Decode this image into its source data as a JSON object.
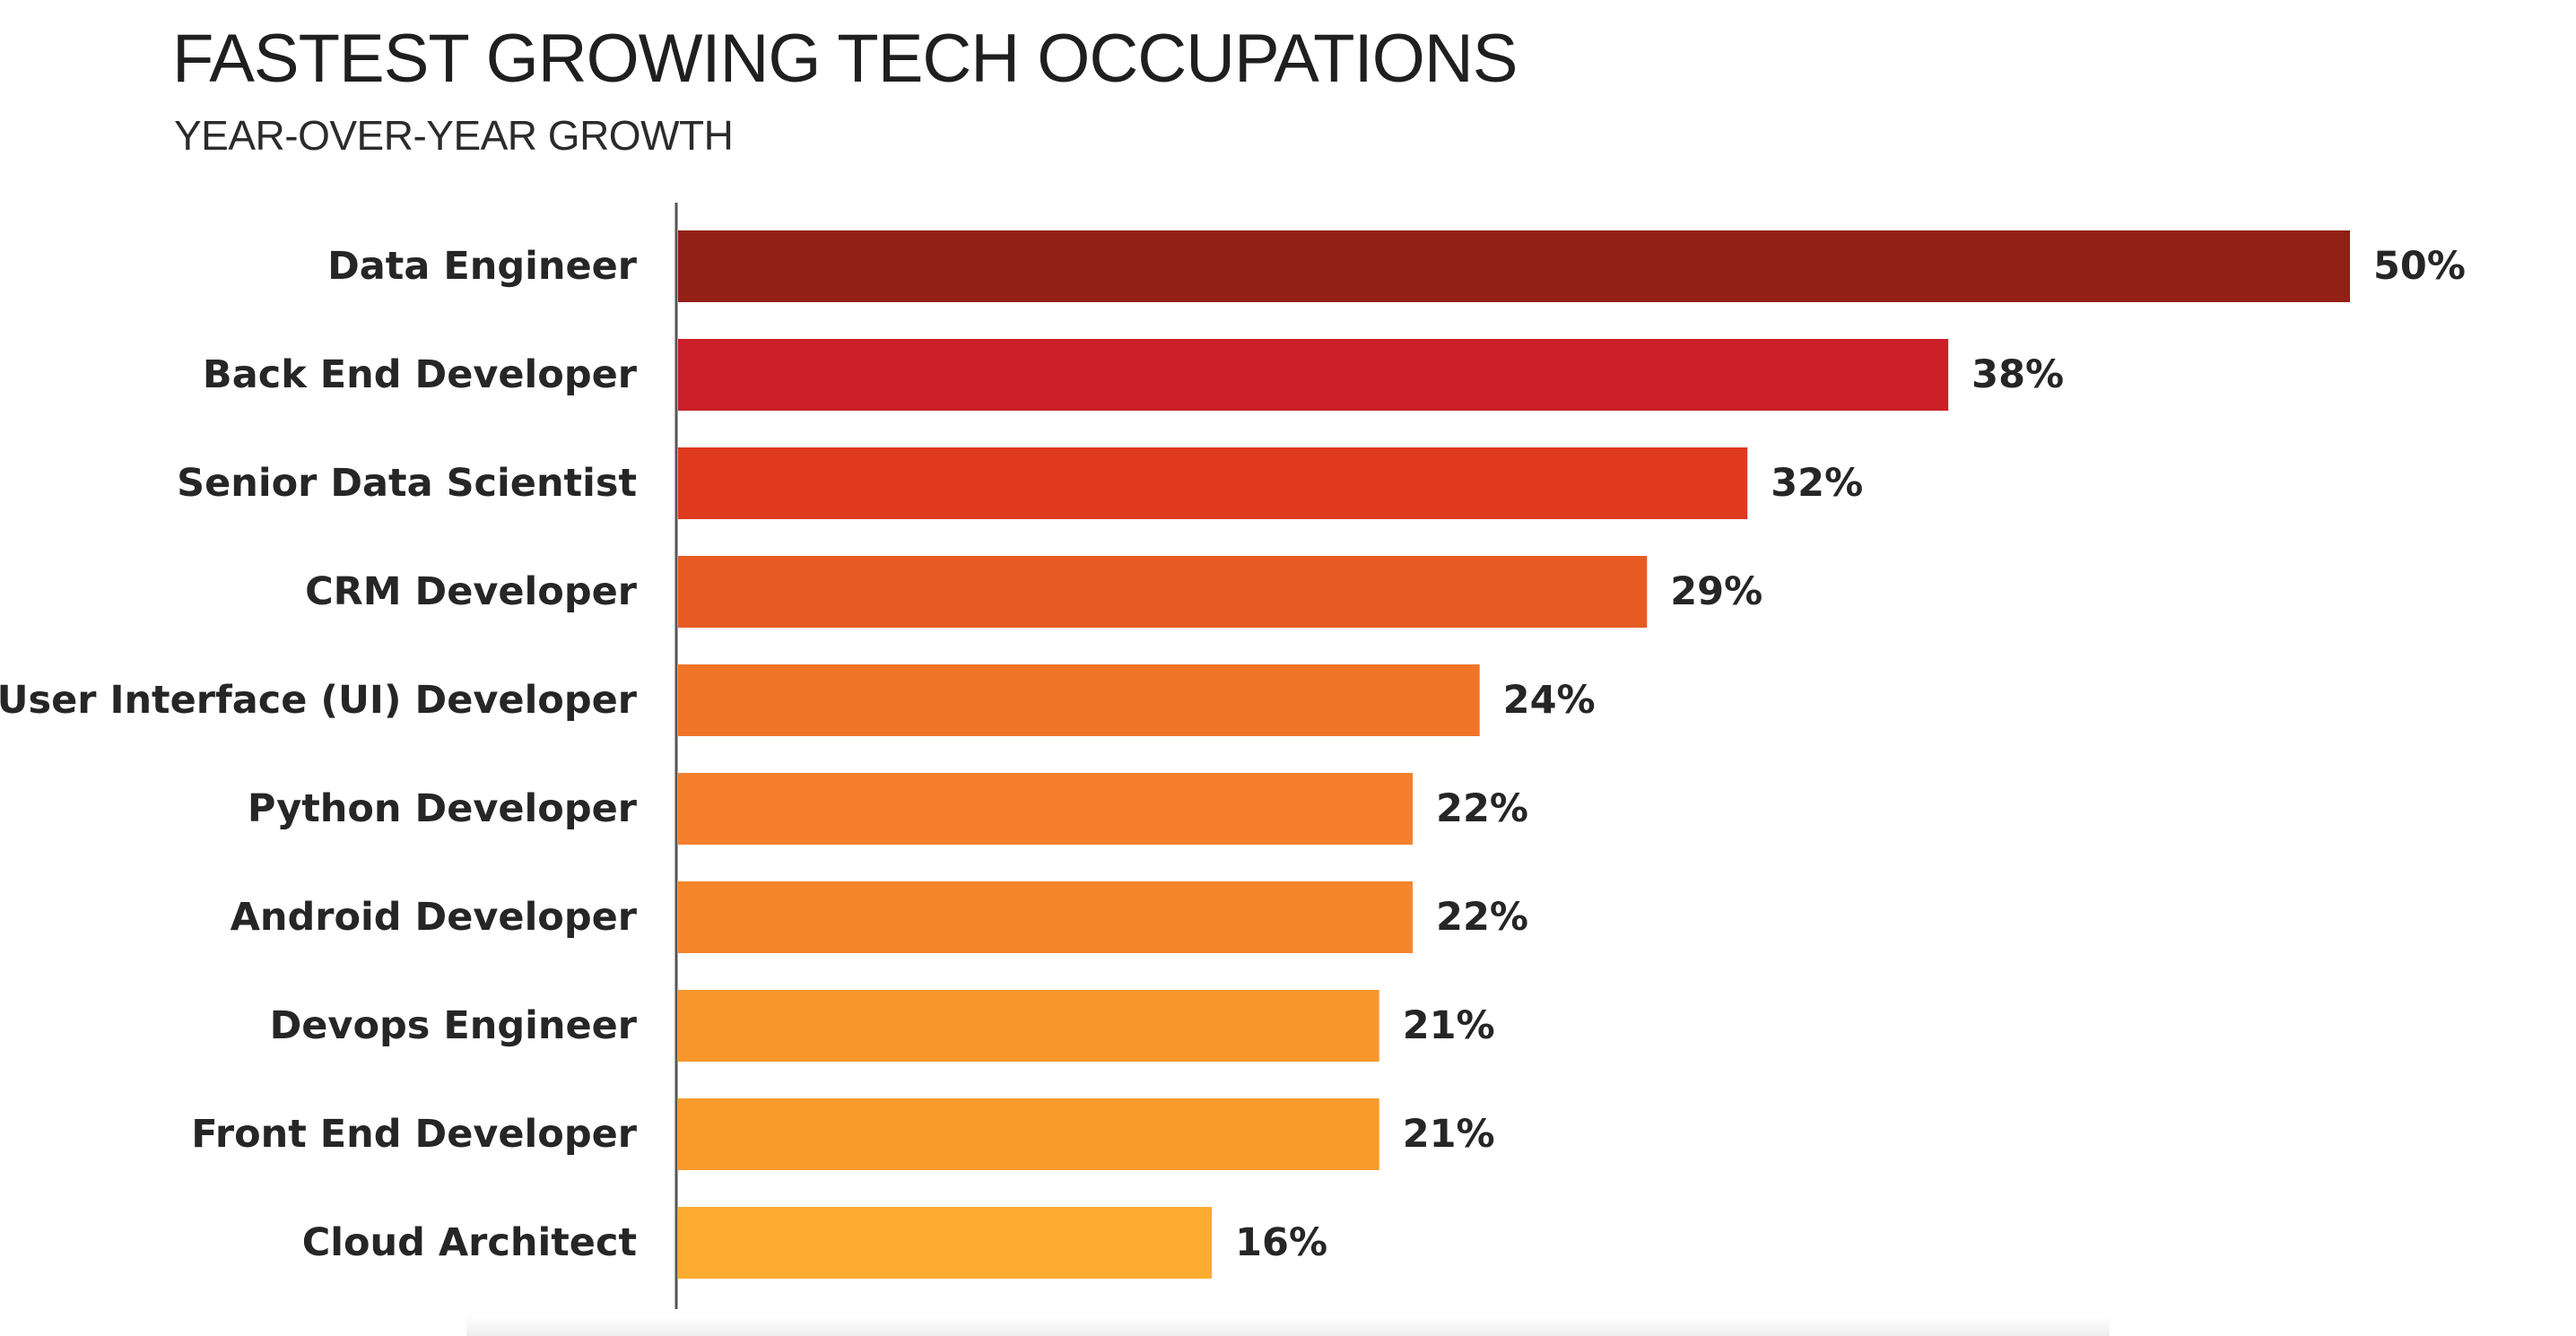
{
  "chart_data": {
    "type": "bar",
    "orientation": "horizontal",
    "title": "FASTEST GROWING TECH OCCUPATIONS",
    "subtitle": "YEAR-OVER-YEAR GROWTH",
    "xlabel": "",
    "ylabel": "",
    "xlim": [
      0,
      50
    ],
    "grid": false,
    "legend": "none",
    "value_suffix": "%",
    "categories": [
      "Data Engineer",
      "Back End Developer",
      "Senior Data Scientist",
      "CRM Developer",
      "User Interface (UI) Developer",
      "Python Developer",
      "Android Developer",
      "Devops Engineer",
      "Front End Developer",
      "Cloud Architect"
    ],
    "values": [
      50,
      38,
      32,
      29,
      24,
      22,
      22,
      21,
      21,
      16
    ],
    "value_labels": [
      "50%",
      "38%",
      "32%",
      "29%",
      "24%",
      "22%",
      "22%",
      "21%",
      "21%",
      "16%"
    ],
    "colors": [
      "#922015",
      "#cb2027",
      "#df3a1e",
      "#e85a24",
      "#f17429",
      "#f57f2a",
      "#f5852b",
      "#f8962c",
      "#f99a2d",
      "#fbab30"
    ],
    "axis_color": "#555555"
  }
}
